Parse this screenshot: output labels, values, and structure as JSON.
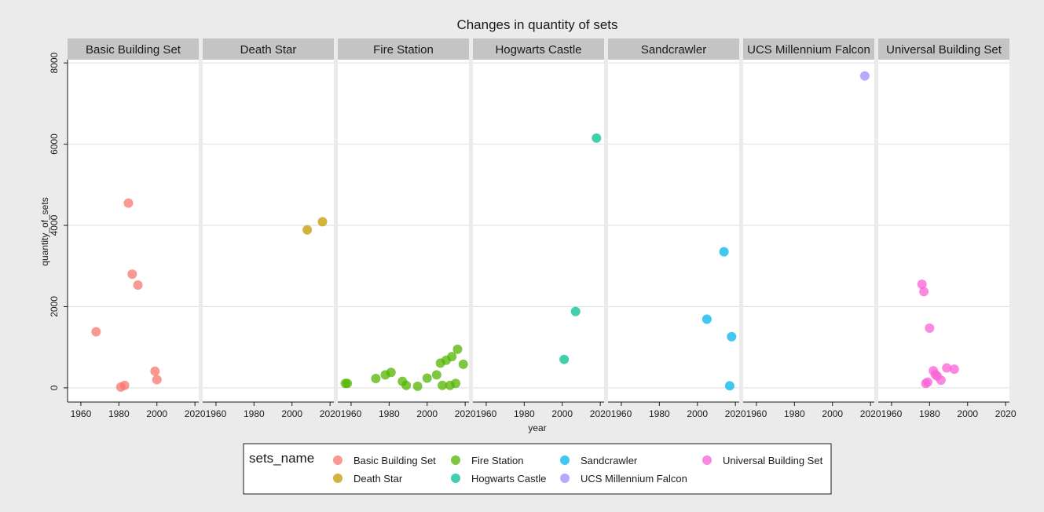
{
  "chart_data": {
    "type": "scatter",
    "title": "Changes in quantity of sets",
    "xlabel": "year",
    "ylabel": "quantity_of_sets",
    "xlim": [
      1953,
      2022
    ],
    "ylim": [
      -350,
      8080
    ],
    "x_ticks": [
      1960,
      1980,
      2000,
      2020
    ],
    "y_ticks": [
      0,
      2000,
      4000,
      6000,
      8000
    ],
    "grid": true,
    "facet_by": "sets_name",
    "legend": {
      "title": "sets_name",
      "position": "bottom"
    },
    "series": [
      {
        "name": "Basic Building Set",
        "color": "#F8766D",
        "points": [
          [
            1968,
            1380
          ],
          [
            1981,
            20
          ],
          [
            1983,
            60
          ],
          [
            1985,
            4550
          ],
          [
            1987,
            2800
          ],
          [
            1990,
            2530
          ],
          [
            1999,
            410
          ],
          [
            2000,
            200
          ]
        ]
      },
      {
        "name": "Death Star",
        "color": "#C49A00",
        "points": [
          [
            2008,
            3890
          ],
          [
            2016,
            4090
          ]
        ]
      },
      {
        "name": "Fire Station",
        "color": "#53B400",
        "points": [
          [
            1957,
            110
          ],
          [
            1958,
            110
          ],
          [
            1973,
            230
          ],
          [
            1978,
            320
          ],
          [
            1981,
            380
          ],
          [
            1987,
            160
          ],
          [
            1989,
            60
          ],
          [
            1995,
            40
          ],
          [
            2000,
            240
          ],
          [
            2005,
            320
          ],
          [
            2007,
            610
          ],
          [
            2008,
            60
          ],
          [
            2010,
            680
          ],
          [
            2012,
            60
          ],
          [
            2013,
            770
          ],
          [
            2015,
            110
          ],
          [
            2016,
            950
          ],
          [
            2019,
            580
          ]
        ]
      },
      {
        "name": "Hogwarts Castle",
        "color": "#00C094",
        "points": [
          [
            2001,
            700
          ],
          [
            2007,
            1880
          ],
          [
            2018,
            6150
          ]
        ]
      },
      {
        "name": "Sandcrawler",
        "color": "#00B6EB",
        "points": [
          [
            2005,
            1690
          ],
          [
            2014,
            3350
          ],
          [
            2017,
            50
          ],
          [
            2018,
            1260
          ]
        ]
      },
      {
        "name": "UCS Millennium Falcon",
        "color": "#A58AFF",
        "points": [
          [
            2017,
            7680
          ]
        ]
      },
      {
        "name": "Universal Building Set",
        "color": "#FB61D7",
        "points": [
          [
            1976,
            2550
          ],
          [
            1977,
            2370
          ],
          [
            1978,
            110
          ],
          [
            1979,
            140
          ],
          [
            1980,
            1470
          ],
          [
            1982,
            420
          ],
          [
            1983,
            330
          ],
          [
            1984,
            290
          ],
          [
            1986,
            190
          ],
          [
            1989,
            490
          ],
          [
            1993,
            460
          ]
        ]
      }
    ]
  }
}
